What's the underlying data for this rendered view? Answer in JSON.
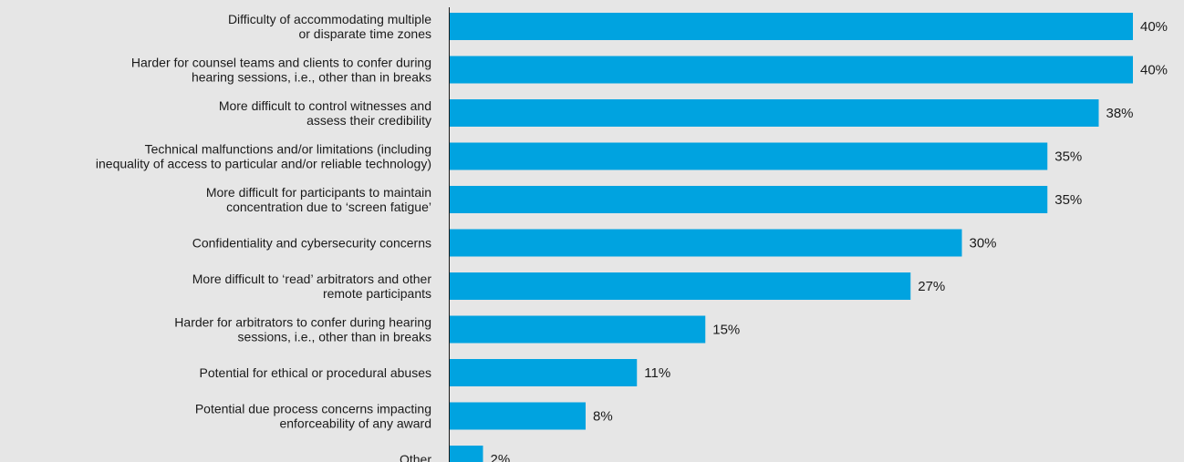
{
  "chart_data": {
    "type": "bar",
    "orientation": "horizontal",
    "categories": [
      [
        "Difficulty of accommodating multiple",
        "or disparate time zones"
      ],
      [
        "Harder for counsel teams and clients to confer during",
        "hearing sessions, i.e., other than in breaks"
      ],
      [
        "More difficult to control witnesses and",
        "assess their credibility"
      ],
      [
        "Technical malfunctions and/or limitations (including",
        "inequality of access to particular and/or reliable technology)"
      ],
      [
        "More difficult for participants to maintain",
        "concentration due to ‘screen fatigue’"
      ],
      [
        "Confidentiality and cybersecurity concerns"
      ],
      [
        "More difficult to ‘read’ arbitrators and other",
        "remote participants"
      ],
      [
        "Harder for arbitrators to confer during hearing",
        "sessions, i.e., other than in breaks"
      ],
      [
        "Potential for ethical or procedural abuses"
      ],
      [
        "Potential due process concerns impacting",
        "enforceability of any award"
      ],
      [
        "Other"
      ]
    ],
    "values": [
      40,
      40,
      38,
      35,
      35,
      30,
      27,
      15,
      11,
      8,
      2
    ],
    "value_labels": [
      "40%",
      "40%",
      "38%",
      "35%",
      "35%",
      "30%",
      "27%",
      "15%",
      "11%",
      "8%",
      "2%"
    ],
    "xlim": [
      0,
      40
    ],
    "bar_color": "#00a3e0",
    "axis_color": "#1a1a1a",
    "grid": false,
    "legend": "none",
    "title": "",
    "xlabel": "",
    "ylabel": ""
  }
}
